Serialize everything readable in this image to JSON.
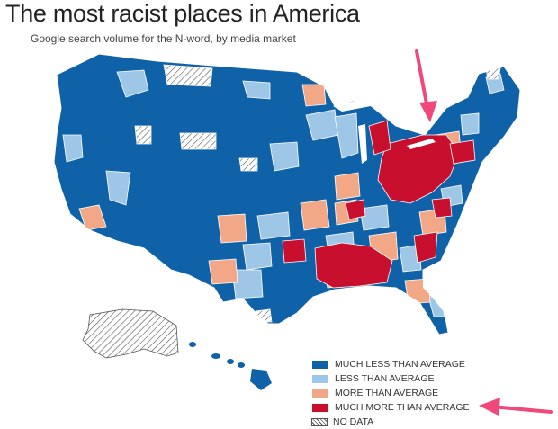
{
  "header": {
    "title": "The most racist places in America",
    "subtitle": "Google search volume for the N-word, by media market"
  },
  "colors": {
    "much_less": "#0f62a8",
    "less": "#9ec6e6",
    "more": "#f2a886",
    "much_more": "#c8102e",
    "no_data": "#ffffff",
    "arrow": "#f0487a"
  },
  "legend": {
    "items": [
      {
        "label": "MUCH LESS THAN AVERAGE",
        "color_key": "much_less"
      },
      {
        "label": "LESS THAN AVERAGE",
        "color_key": "less"
      },
      {
        "label": "MORE THAN AVERAGE",
        "color_key": "more"
      },
      {
        "label": "MUCH MORE THAN AVERAGE",
        "color_key": "much_more"
      },
      {
        "label": "NO DATA",
        "color_key": "no_data"
      }
    ]
  }
}
